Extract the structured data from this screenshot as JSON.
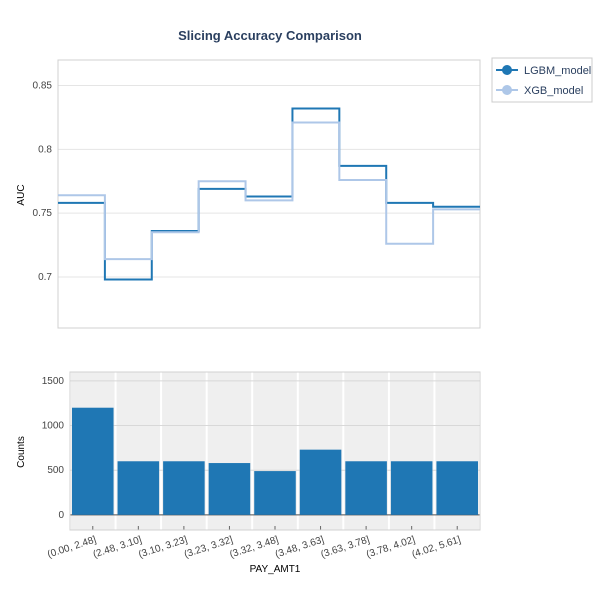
{
  "colors": {
    "lgbm": "#1f77b4",
    "xgb": "#aec7e8",
    "bar": "#1f77b4",
    "grid": "#e5e5e5",
    "band": "#efefef"
  },
  "chart_data": [
    {
      "type": "line",
      "step": true,
      "title": "Slicing Accuracy Comparison",
      "ylabel": "AUC",
      "ylim": [
        0.66,
        0.87
      ],
      "yticks": [
        0.7,
        0.75,
        0.8,
        0.85
      ],
      "ytick_labels": [
        "0.7",
        "0.75",
        "0.8",
        "0.85"
      ],
      "grid": true,
      "legend": "right, top",
      "series": [
        {
          "name": "LGBM_model",
          "values": [
            0.758,
            0.698,
            0.736,
            0.769,
            0.763,
            0.832,
            0.787,
            0.758,
            0.755
          ]
        },
        {
          "name": "XGB_model",
          "values": [
            0.764,
            0.714,
            0.735,
            0.775,
            0.76,
            0.821,
            0.776,
            0.726,
            0.753
          ]
        }
      ]
    },
    {
      "type": "bar",
      "xlabel": "PAY_AMT1",
      "ylabel": "Counts",
      "ylim": [
        -170,
        1600
      ],
      "yticks": [
        0,
        500,
        1000,
        1500
      ],
      "ytick_labels": [
        "0",
        "500",
        "1000",
        "1500"
      ],
      "grid": true,
      "categories": [
        "(0.00, 2.48]",
        "(2.48, 3.10]",
        "(3.10, 3.23]",
        "(3.23, 3.32]",
        "(3.32, 3.48]",
        "(3.48, 3.63]",
        "(3.63, 3.78]",
        "(3.78, 4.02]",
        "(4.02, 5.61]"
      ],
      "values": [
        1200,
        600,
        600,
        580,
        490,
        730,
        600,
        600,
        600
      ]
    }
  ]
}
